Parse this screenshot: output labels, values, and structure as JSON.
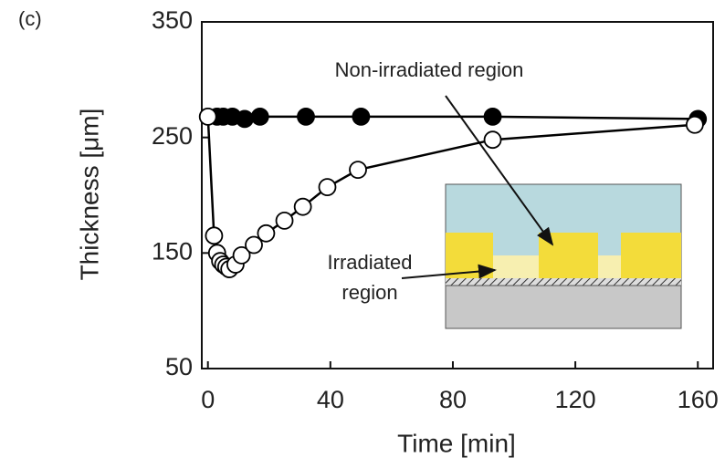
{
  "chart_data": {
    "type": "scatter-line",
    "panel_label": "(c)",
    "x_label": "Time [min]",
    "y_label": "Thickness [μm]",
    "xlim": [
      -2,
      165
    ],
    "ylim": [
      50,
      350
    ],
    "xticks": [
      0,
      40,
      80,
      120,
      160
    ],
    "yticks": [
      50,
      150,
      250,
      350
    ],
    "series": [
      {
        "color": "#000000",
        "marker_fill": "#000000",
        "x": [
          3,
          5,
          8,
          12,
          17,
          32,
          50,
          93,
          160
        ],
        "values": [
          268,
          268,
          268,
          266,
          268,
          268,
          268,
          268,
          266
        ]
      },
      {
        "color": "#000000",
        "marker_fill": "#ffffff",
        "x": [
          0,
          2,
          3,
          4,
          5,
          6,
          7,
          9,
          11,
          15,
          19,
          25,
          31,
          39,
          49,
          93,
          159
        ],
        "values": [
          268,
          165,
          150,
          143,
          140,
          138,
          136,
          140,
          148,
          157,
          167,
          178,
          190,
          207,
          222,
          248,
          261
        ]
      }
    ],
    "annotations": [
      "Non-irradiated region",
      "Irradiated",
      "region"
    ]
  }
}
